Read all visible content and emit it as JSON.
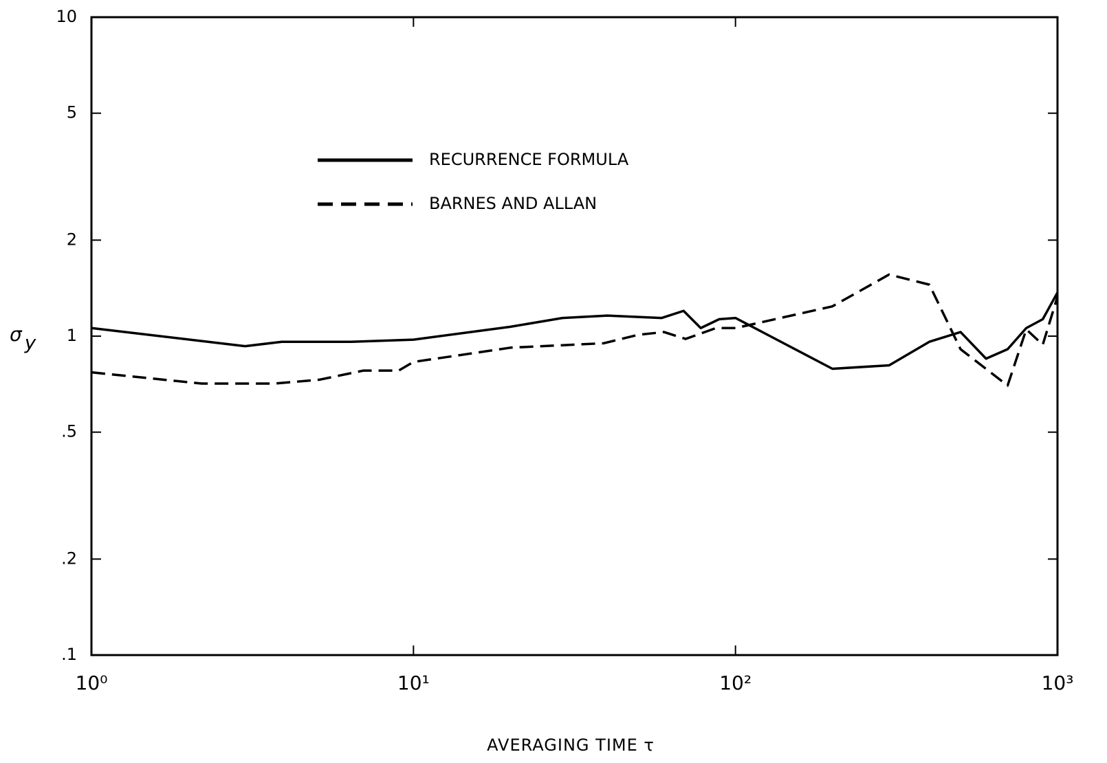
{
  "chart_data": {
    "type": "line",
    "x_label": "AVERAGING TIME τ",
    "y_label": "σy",
    "log_x": true,
    "log_y": true,
    "xlim": [
      1,
      1000
    ],
    "xticks": [
      {
        "value": 1,
        "label": "10⁰"
      },
      {
        "value": 10,
        "label": "10¹"
      },
      {
        "value": 100,
        "label": "10²"
      },
      {
        "value": 1000,
        "label": "10³"
      }
    ],
    "ylim": [
      0.1,
      10
    ],
    "yticks": [
      {
        "value": 0.1,
        "label": ".1"
      },
      {
        "value": 0.2,
        "label": ".2"
      },
      {
        "value": 0.5,
        "label": ".5"
      },
      1,
      2,
      5,
      10
    ],
    "series": [
      {
        "name": "RECURRENCE FORMULA",
        "color": "#000000",
        "dash": "solid",
        "x": [
          1,
          3,
          3.9,
          6.4,
          10,
          20,
          29,
          40,
          59,
          69,
          78,
          89,
          100,
          200,
          300,
          400,
          500,
          600,
          700,
          800,
          900,
          1000
        ],
        "values": [
          1.06,
          0.93,
          0.96,
          0.96,
          0.975,
          1.07,
          1.14,
          1.16,
          1.14,
          1.2,
          1.06,
          1.13,
          1.14,
          0.79,
          0.81,
          0.96,
          1.03,
          0.85,
          0.91,
          1.06,
          1.13,
          1.37
        ]
      },
      {
        "name": "BARNES AND ALLAN",
        "color": "#000000",
        "dash": "dashed",
        "x": [
          1,
          2.2,
          3.7,
          5.1,
          7,
          9,
          10,
          20,
          39,
          50,
          60,
          70,
          87,
          100,
          200,
          300,
          400,
          500,
          700,
          800,
          900,
          1000
        ],
        "values": [
          0.77,
          0.71,
          0.71,
          0.73,
          0.78,
          0.78,
          0.83,
          0.92,
          0.95,
          1.01,
          1.03,
          0.98,
          1.06,
          1.06,
          1.24,
          1.56,
          1.45,
          0.91,
          0.7,
          1.05,
          0.94,
          1.33
        ]
      }
    ]
  }
}
